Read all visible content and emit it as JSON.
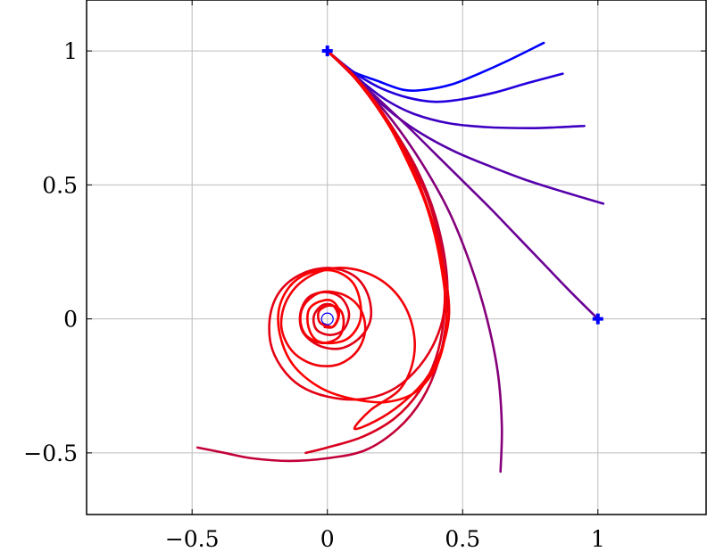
{
  "chart_data": {
    "type": "line",
    "title": "",
    "xlabel": "",
    "ylabel": "",
    "xlim": [
      -0.89,
      1.4
    ],
    "ylim": [
      -0.73,
      1.19
    ],
    "grid": true,
    "x_ticks": [
      -0.5,
      0,
      0.5,
      1
    ],
    "y_ticks": [
      -0.5,
      0,
      0.5,
      1
    ],
    "x_tick_labels": [
      "−0.5",
      "0",
      "0.5",
      "1"
    ],
    "y_tick_labels": [
      "−0.5",
      "0",
      "0.5",
      "1"
    ],
    "markers": [
      {
        "shape": "plus",
        "x": 0,
        "y": 1,
        "color": "#0000ff"
      },
      {
        "shape": "plus",
        "x": 1,
        "y": 0,
        "color": "#0000ff"
      },
      {
        "shape": "circle",
        "x": 0,
        "y": 0,
        "color": "#0000ff"
      }
    ],
    "color_scale": {
      "start": "#0000ff",
      "end": "#ff0000"
    },
    "series": [
      {
        "color": "#0000ff",
        "points": [
          [
            0,
            1
          ],
          [
            0.05,
            0.955
          ],
          [
            0.1,
            0.92
          ],
          [
            0.18,
            0.89
          ],
          [
            0.28,
            0.855
          ],
          [
            0.36,
            0.855
          ],
          [
            0.46,
            0.875
          ],
          [
            0.56,
            0.915
          ],
          [
            0.67,
            0.965
          ],
          [
            0.8,
            1.03
          ]
        ]
      },
      {
        "color": "#2200dd",
        "points": [
          [
            0,
            1
          ],
          [
            0.06,
            0.95
          ],
          [
            0.12,
            0.905
          ],
          [
            0.2,
            0.86
          ],
          [
            0.3,
            0.825
          ],
          [
            0.4,
            0.81
          ],
          [
            0.5,
            0.82
          ],
          [
            0.62,
            0.845
          ],
          [
            0.74,
            0.88
          ],
          [
            0.87,
            0.915
          ]
        ]
      },
      {
        "color": "#3d00c2",
        "points": [
          [
            0,
            1
          ],
          [
            0.07,
            0.94
          ],
          [
            0.14,
            0.875
          ],
          [
            0.22,
            0.815
          ],
          [
            0.32,
            0.765
          ],
          [
            0.45,
            0.73
          ],
          [
            0.6,
            0.715
          ],
          [
            0.75,
            0.712
          ],
          [
            0.85,
            0.715
          ],
          [
            0.95,
            0.72
          ]
        ]
      },
      {
        "color": "#5500aa",
        "points": [
          [
            0,
            1
          ],
          [
            0.08,
            0.925
          ],
          [
            0.16,
            0.84
          ],
          [
            0.25,
            0.76
          ],
          [
            0.35,
            0.69
          ],
          [
            0.47,
            0.625
          ],
          [
            0.6,
            0.57
          ],
          [
            0.73,
            0.52
          ],
          [
            0.87,
            0.475
          ],
          [
            1.02,
            0.43
          ]
        ]
      },
      {
        "color": "#6a0095",
        "points": [
          [
            0,
            1
          ],
          [
            0.1,
            0.905
          ],
          [
            0.2,
            0.81
          ],
          [
            0.3,
            0.715
          ],
          [
            0.4,
            0.615
          ],
          [
            0.5,
            0.515
          ],
          [
            0.6,
            0.415
          ],
          [
            0.7,
            0.31
          ],
          [
            0.8,
            0.205
          ],
          [
            0.9,
            0.1
          ],
          [
            1,
            0
          ]
        ]
      },
      {
        "color": "#85007a",
        "points": [
          [
            0,
            1
          ],
          [
            0.12,
            0.88
          ],
          [
            0.24,
            0.74
          ],
          [
            0.35,
            0.58
          ],
          [
            0.45,
            0.4
          ],
          [
            0.53,
            0.2
          ],
          [
            0.59,
            0
          ],
          [
            0.63,
            -0.2
          ],
          [
            0.645,
            -0.4
          ],
          [
            0.64,
            -0.57
          ]
        ]
      },
      {
        "color": "#c20038",
        "points": [
          [
            0,
            1
          ],
          [
            0.12,
            0.88
          ],
          [
            0.23,
            0.73
          ],
          [
            0.33,
            0.56
          ],
          [
            0.4,
            0.38
          ],
          [
            0.44,
            0.18
          ],
          [
            0.44,
            0
          ],
          [
            0.41,
            -0.16
          ],
          [
            0.35,
            -0.3
          ],
          [
            0.26,
            -0.41
          ],
          [
            0.14,
            -0.49
          ],
          [
            0,
            -0.52
          ],
          [
            -0.14,
            -0.53
          ],
          [
            -0.28,
            -0.52
          ],
          [
            -0.38,
            -0.5
          ],
          [
            -0.48,
            -0.48
          ]
        ]
      },
      {
        "color": "#d8001f",
        "points": [
          [
            0,
            1
          ],
          [
            0.11,
            0.89
          ],
          [
            0.22,
            0.745
          ],
          [
            0.32,
            0.57
          ],
          [
            0.39,
            0.39
          ],
          [
            0.43,
            0.19
          ],
          [
            0.43,
            0
          ],
          [
            0.4,
            -0.15
          ],
          [
            0.34,
            -0.27
          ],
          [
            0.25,
            -0.37
          ],
          [
            0.13,
            -0.44
          ],
          [
            0,
            -0.48
          ],
          [
            -0.08,
            -0.5
          ]
        ]
      },
      {
        "color": "#e40014",
        "points": [
          [
            0,
            1
          ],
          [
            0.11,
            0.895
          ],
          [
            0.21,
            0.76
          ],
          [
            0.31,
            0.58
          ],
          [
            0.38,
            0.38
          ],
          [
            0.43,
            0.17
          ],
          [
            0.43,
            0.02
          ],
          [
            0.39,
            -0.1
          ],
          [
            0.32,
            -0.2
          ],
          [
            0.23,
            -0.27
          ],
          [
            0.12,
            -0.3
          ],
          [
            0,
            -0.29
          ],
          [
            -0.1,
            -0.25
          ],
          [
            -0.17,
            -0.18
          ],
          [
            -0.21,
            -0.09
          ],
          [
            -0.21,
            0.02
          ],
          [
            -0.17,
            0.11
          ],
          [
            -0.09,
            0.17
          ],
          [
            0.01,
            0.19
          ],
          [
            0.1,
            0.16
          ],
          [
            0.15,
            0.09
          ],
          [
            0.16,
            0
          ],
          [
            0.12,
            -0.07
          ],
          [
            0.05,
            -0.11
          ],
          [
            -0.03,
            -0.1
          ],
          [
            -0.09,
            -0.05
          ],
          [
            -0.1,
            0.02
          ],
          [
            -0.07,
            0.08
          ],
          [
            -0.01,
            0.1
          ],
          [
            0.05,
            0.08
          ],
          [
            0.08,
            0.02
          ],
          [
            0.06,
            -0.04
          ],
          [
            0.01,
            -0.06
          ],
          [
            -0.04,
            -0.04
          ],
          [
            -0.05,
            0.01
          ],
          [
            -0.02,
            0.05
          ],
          [
            0.02,
            0.05
          ],
          [
            0.04,
            0.01
          ],
          [
            0.02,
            -0.03
          ],
          [
            -0.01,
            -0.03
          ]
        ]
      },
      {
        "color": "#f20008",
        "points": [
          [
            0,
            1
          ],
          [
            0.1,
            0.9
          ],
          [
            0.2,
            0.765
          ],
          [
            0.3,
            0.59
          ],
          [
            0.38,
            0.39
          ],
          [
            0.43,
            0.19
          ],
          [
            0.45,
            0.02
          ],
          [
            0.42,
            -0.12
          ],
          [
            0.36,
            -0.23
          ],
          [
            0.27,
            -0.32
          ],
          [
            0.18,
            -0.38
          ],
          [
            0.1,
            -0.41
          ],
          [
            0.16,
            -0.34
          ],
          [
            0.27,
            -0.26
          ],
          [
            0.32,
            -0.14
          ],
          [
            0.31,
            -0.01
          ],
          [
            0.25,
            0.1
          ],
          [
            0.15,
            0.17
          ],
          [
            0.03,
            0.19
          ],
          [
            -0.08,
            0.15
          ],
          [
            -0.15,
            0.07
          ],
          [
            -0.17,
            -0.03
          ],
          [
            -0.13,
            -0.12
          ],
          [
            -0.05,
            -0.17
          ],
          [
            0.04,
            -0.17
          ],
          [
            0.11,
            -0.12
          ],
          [
            0.14,
            -0.04
          ],
          [
            0.12,
            0.04
          ],
          [
            0.06,
            0.09
          ],
          [
            -0.02,
            0.1
          ],
          [
            -0.08,
            0.06
          ],
          [
            -0.1,
            0
          ],
          [
            -0.08,
            -0.06
          ],
          [
            -0.02,
            -0.09
          ],
          [
            0.04,
            -0.07
          ],
          [
            0.06,
            -0.02
          ],
          [
            0.05,
            0.03
          ],
          [
            0.01,
            0.05
          ],
          [
            -0.03,
            0.03
          ],
          [
            -0.03,
            -0.01
          ],
          [
            0,
            -0.03
          ]
        ]
      },
      {
        "color": "#ff0000",
        "points": [
          [
            0,
            1
          ],
          [
            0.1,
            0.905
          ],
          [
            0.2,
            0.77
          ],
          [
            0.29,
            0.6
          ],
          [
            0.37,
            0.41
          ],
          [
            0.42,
            0.2
          ],
          [
            0.44,
            0
          ],
          [
            0.41,
            -0.16
          ],
          [
            0.33,
            -0.27
          ],
          [
            0.22,
            -0.31
          ],
          [
            0.1,
            -0.3
          ],
          [
            -0.02,
            -0.26
          ],
          [
            -0.12,
            -0.18
          ],
          [
            -0.17,
            -0.08
          ],
          [
            -0.18,
            0.03
          ],
          [
            -0.14,
            0.12
          ],
          [
            -0.07,
            0.17
          ],
          [
            0.02,
            0.18
          ],
          [
            0.09,
            0.14
          ],
          [
            0.12,
            0.07
          ],
          [
            0.12,
            -0.01
          ],
          [
            0.08,
            -0.07
          ],
          [
            0.02,
            -0.09
          ],
          [
            -0.04,
            -0.08
          ],
          [
            -0.07,
            -0.03
          ],
          [
            -0.07,
            0.03
          ],
          [
            -0.04,
            0.06
          ],
          [
            0.01,
            0.07
          ],
          [
            0.04,
            0.04
          ],
          [
            0.04,
            0
          ],
          [
            0.02,
            -0.03
          ],
          [
            -0.01,
            -0.02
          ]
        ]
      }
    ]
  }
}
